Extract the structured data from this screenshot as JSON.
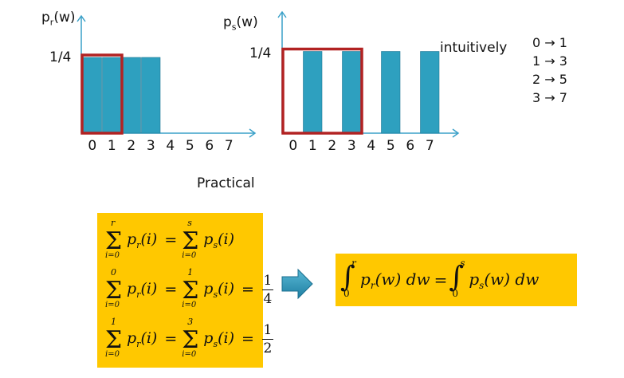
{
  "left_chart": {
    "ylabel_main": "p",
    "ylabel_sub": "r",
    "ylabel_tail": "(w)",
    "level_label": "1/4",
    "ticks": [
      "0",
      "1",
      "2",
      "3",
      "4",
      "5",
      "6",
      "7"
    ],
    "bars_at": [
      0,
      1,
      2,
      3
    ],
    "bar_value": 0.25,
    "highlight": [
      0,
      1
    ],
    "caption": "Practical"
  },
  "right_chart": {
    "ylabel_main": "p",
    "ylabel_sub": "s",
    "ylabel_tail": "(w)",
    "level_label": "1/4",
    "ticks": [
      "0",
      "1",
      "2",
      "3",
      "4",
      "5",
      "6",
      "7"
    ],
    "bars_at": [
      1,
      3,
      5,
      7
    ],
    "bar_value": 0.25,
    "highlight": [
      0,
      3
    ],
    "note": "intuitively"
  },
  "mapping": [
    {
      "from": "0",
      "arrow": "→",
      "to": "1"
    },
    {
      "from": "1",
      "arrow": "→",
      "to": "3"
    },
    {
      "from": "2",
      "arrow": "→",
      "to": "5"
    },
    {
      "from": "3",
      "arrow": "→",
      "to": "7"
    }
  ],
  "sums": [
    {
      "l_upper": "r",
      "l_lower": "i=0",
      "l_term": "p",
      "l_sub": "r",
      "l_arg": "(i)",
      "eq": "=",
      "r_upper": "s",
      "r_lower": "i=0",
      "r_term": "p",
      "r_sub": "s",
      "r_arg": "(i)",
      "frac_num": "",
      "frac_den": ""
    },
    {
      "l_upper": "0",
      "l_lower": "i=0",
      "l_term": "p",
      "l_sub": "r",
      "l_arg": "(i)",
      "eq": "=",
      "r_upper": "1",
      "r_lower": "i=0",
      "r_term": "p",
      "r_sub": "s",
      "r_arg": "(i)",
      "frac_num": "1",
      "frac_den": "4"
    },
    {
      "l_upper": "1",
      "l_lower": "i=0",
      "l_term": "p",
      "l_sub": "r",
      "l_arg": "(i)",
      "eq": "=",
      "r_upper": "3",
      "r_lower": "i=0",
      "r_term": "p",
      "r_sub": "s",
      "r_arg": "(i)",
      "frac_num": "1",
      "frac_den": "2"
    }
  ],
  "integral": {
    "l_upper": "r",
    "l_lower": "0",
    "l_body": "p",
    "l_sub": "r",
    "l_arg": "(w) dw",
    "eq": "=",
    "r_upper": "s",
    "r_lower": "0",
    "r_body": "p",
    "r_sub": "s",
    "r_arg": "(w) dw"
  },
  "colors": {
    "bar": "#2ea0bf",
    "highlight": "#b22222",
    "axis": "#3aa0c8",
    "box": "#ffc800",
    "arrow": "#2e8fb0"
  }
}
